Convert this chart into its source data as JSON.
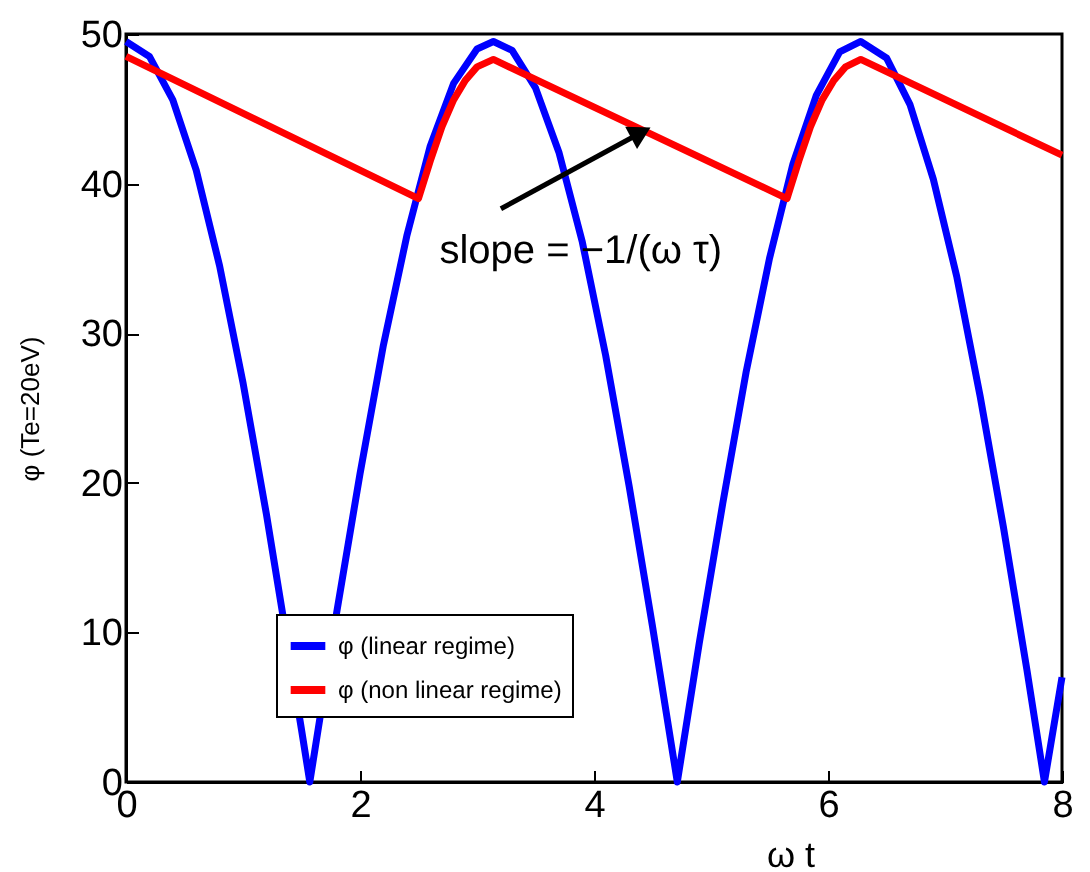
{
  "chart_data": {
    "type": "line",
    "xlabel": "ω t",
    "ylabel": "φ (Te=20eV)",
    "xlim": [
      0,
      8
    ],
    "ylim": [
      0,
      50
    ],
    "xticks": [
      0,
      2,
      4,
      6,
      8
    ],
    "yticks": [
      0,
      10,
      20,
      30,
      40,
      50
    ],
    "grid": false,
    "legend": "bottom left",
    "line_style": "solid",
    "marker": "none",
    "annotations": [
      {
        "text": "slope = −1/(ω τ)",
        "x": 4.4,
        "y": 43.4
      }
    ],
    "series": [
      {
        "name": "φ (linear regime)",
        "color": "#0000ff",
        "x": [
          0,
          0.2,
          0.4,
          0.6,
          0.8,
          1.0,
          1.2,
          1.5,
          1.571,
          1.8,
          2.0,
          2.2,
          2.4,
          2.6,
          2.8,
          3.0,
          3.14,
          3.3,
          3.5,
          3.7,
          3.9,
          4.1,
          4.3,
          4.5,
          4.712,
          4.9,
          5.1,
          5.3,
          5.5,
          5.7,
          5.9,
          6.1,
          6.28,
          6.5,
          6.7,
          6.9,
          7.1,
          7.3,
          7.5,
          7.7,
          7.85,
          8.0
        ],
        "values": [
          49.5,
          48.5,
          45.6,
          40.9,
          34.5,
          26.7,
          17.9,
          3.5,
          0,
          11.3,
          20.6,
          29.2,
          36.5,
          42.5,
          46.7,
          49.0,
          49.5,
          48.9,
          46.4,
          42.1,
          36.1,
          28.5,
          19.8,
          10.4,
          0,
          9.3,
          18.6,
          27.4,
          35.0,
          41.3,
          45.9,
          48.8,
          49.5,
          48.4,
          45.3,
          40.3,
          33.8,
          25.8,
          17.0,
          7.5,
          0,
          7
        ]
      },
      {
        "name": "φ (non linear regime)",
        "color": "#ff0000",
        "x": [
          0,
          2.5,
          2.6,
          2.7,
          2.8,
          2.9,
          3.0,
          3.14,
          5.65,
          5.75,
          5.85,
          5.95,
          6.05,
          6.15,
          6.28,
          8.0
        ],
        "values": [
          48.5,
          39,
          41.5,
          43.8,
          45.6,
          46.9,
          47.8,
          48.3,
          39,
          41.5,
          43.8,
          45.6,
          46.9,
          47.8,
          48.3,
          41.9
        ]
      }
    ]
  }
}
